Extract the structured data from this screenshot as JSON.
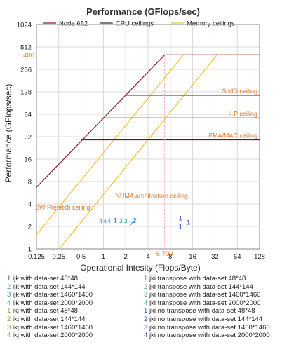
{
  "chart_data": {
    "type": "line",
    "title": "Performance (GFlops/sec)",
    "xlabel": "Operational Intesity (Flops/Byte)",
    "ylabel": "Performance (GFlops/sec)",
    "x_scale": "log2",
    "y_scale": "log2",
    "xlim": [
      0.125,
      128
    ],
    "ylim": [
      1,
      1024
    ],
    "x_ticks": [
      "0.125",
      "0.25",
      "0.5",
      "1",
      "2",
      "4",
      "8",
      "16",
      "32",
      "64",
      "128"
    ],
    "y_ticks": [
      "1",
      "2",
      "4",
      "8",
      "16",
      "32",
      "64",
      "128",
      "256",
      "512",
      "1024"
    ],
    "grid": true,
    "legend": {
      "placement": "top",
      "entries": [
        {
          "label": "Node 652",
          "color": "#8b1a2a"
        },
        {
          "label": "CPU ceilings",
          "color": "#5c1a2a"
        },
        {
          "label": "Memory ceilings",
          "color": "#f2c23a"
        }
      ]
    },
    "node_roofline": {
      "name": "Node 652",
      "color": "#8b1a2a",
      "points": [
        [
          0.125,
          6.7
        ],
        [
          6.7,
          400
        ],
        [
          128,
          400
        ]
      ]
    },
    "cpu_ceilings": [
      {
        "label": "SIMD ceiling",
        "y": 115,
        "x_start": 2
      },
      {
        "label": "ILP ceiling",
        "y": 57,
        "x_start": 1
      },
      {
        "label": "FMA/MAC ceiling",
        "y": 29,
        "x_start": 0.5
      }
    ],
    "memory_ceilings": [
      {
        "label": "NUMA architecture ceiling",
        "points": [
          [
            0.125,
            1.55
          ],
          [
            12,
            400
          ]
        ]
      },
      {
        "label": "SW Prefetch ceiling",
        "points": [
          [
            0.25,
            0.98
          ],
          [
            34,
            400
          ]
        ]
      }
    ],
    "annotations": {
      "peak_value": "400",
      "peak_value_y": 400,
      "ridge_value": "6.700",
      "ridge_value_x": 6.7
    },
    "marker_colors": {
      "1": "#3355aa",
      "2": "#3b8fd6",
      "3": "#2f9e8e",
      "4": "#6b8fb8"
    },
    "markers_jki_transpose": [
      {
        "label": "1",
        "x": 1.45,
        "y": 2.25
      },
      {
        "label": "2",
        "x": 2.65,
        "y": 2.25
      },
      {
        "label": "3",
        "x": 1.72,
        "y": 2.22
      },
      {
        "label": "3",
        "x": 2.0,
        "y": 2.22
      },
      {
        "label": "4",
        "x": 0.92,
        "y": 2.2
      },
      {
        "label": "4",
        "x": 1.05,
        "y": 2.2
      }
    ],
    "markers_ikj": [
      {
        "label": "2",
        "x": 2.55,
        "y": 2.22
      },
      {
        "label": "1",
        "x": 11.0,
        "y": 2.4
      },
      {
        "label": "1",
        "x": 11.0,
        "y": 1.85
      },
      {
        "label": "1",
        "x": 14.0,
        "y": 2.12
      },
      {
        "label": "2",
        "x": 2.35,
        "y": 2.0
      },
      {
        "label": "4",
        "x": 1.2,
        "y": 2.22
      }
    ],
    "series_legend": [
      [
        {
          "num": "1",
          "label": "ijk with data-set 48*48",
          "color": "#3355aa"
        },
        {
          "num": "2",
          "label": "ijk with data-set 144*144",
          "color": "#3b8fd6"
        },
        {
          "num": "3",
          "label": "ijk with data-set 1460*1460",
          "color": "#2f9e8e"
        },
        {
          "num": "4",
          "label": "ijk with data-set 2000*2000",
          "color": "#6b8fb8"
        },
        {
          "num": "1",
          "label": "ikj with data-set 48*48",
          "color": "#9aa23b"
        },
        {
          "num": "2",
          "label": "ikj with data-set 144*144",
          "color": "#9aa23b"
        },
        {
          "num": "3",
          "label": "ikj with data-set 1460*1460",
          "color": "#9aa23b"
        },
        {
          "num": "4",
          "label": "ikj with data-set 2000*2000",
          "color": "#9aa23b"
        }
      ],
      [
        {
          "num": "1",
          "label": "jki transpose with data-set 48*48",
          "color": "#2f9e8e"
        },
        {
          "num": "2",
          "label": "jki transpose with data-set 144*144",
          "color": "#2f9e8e"
        },
        {
          "num": "3",
          "label": "jki transpose with data-set 1460*1460",
          "color": "#2f9e8e"
        },
        {
          "num": "4",
          "label": "jki transpose with data-set 2000*2000",
          "color": "#2f9e8e"
        },
        {
          "num": "1",
          "label": "jki no transpose with data-set 48*48",
          "color": "#3355aa"
        },
        {
          "num": "2",
          "label": "jki no transpose with data-set 144*144",
          "color": "#3355aa"
        },
        {
          "num": "3",
          "label": "jki no transpose with data-set 1460*1460",
          "color": "#3355aa"
        },
        {
          "num": "4",
          "label": "jki no transpose with data-set 2000*2000",
          "color": "#3355aa"
        }
      ]
    ]
  }
}
